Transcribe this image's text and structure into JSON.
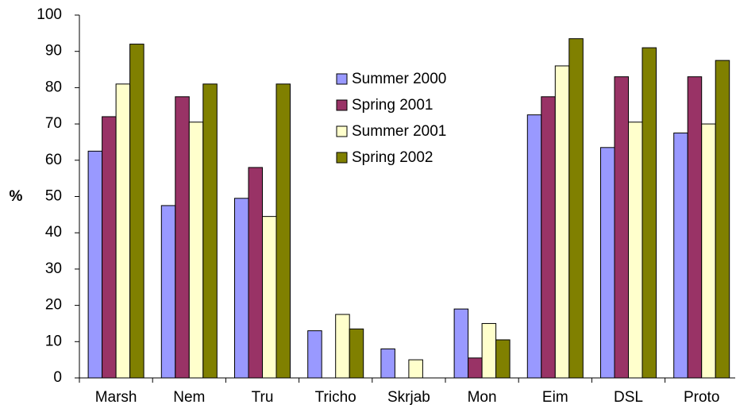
{
  "chart_data": {
    "type": "bar",
    "ylabel": "%",
    "categories": [
      "Marsh",
      "Nem",
      "Tru",
      "Tricho",
      "Skrjab",
      "Mon",
      "Eim",
      "DSL",
      "Proto"
    ],
    "series": [
      {
        "name": "Summer 2000",
        "color": "#9999ff",
        "values": [
          62.5,
          47.5,
          49.5,
          13,
          8,
          19,
          72.5,
          63.5,
          67.5
        ]
      },
      {
        "name": "Spring 2001",
        "color": "#993366",
        "values": [
          72,
          77.5,
          58,
          0,
          0,
          5.5,
          77.5,
          83,
          83
        ]
      },
      {
        "name": "Summer 2001",
        "color": "#ffffcc",
        "values": [
          81,
          70.5,
          44.5,
          17.5,
          5,
          15,
          86,
          70.5,
          70
        ]
      },
      {
        "name": "Spring 2002",
        "color": "#808000",
        "values": [
          92,
          81,
          81,
          13.5,
          0,
          10.5,
          93.5,
          91,
          87.5
        ]
      }
    ],
    "ylim": [
      0,
      100
    ],
    "yticks": [
      0,
      10,
      20,
      30,
      40,
      50,
      60,
      70,
      80,
      90,
      100
    ],
    "grid": false
  }
}
